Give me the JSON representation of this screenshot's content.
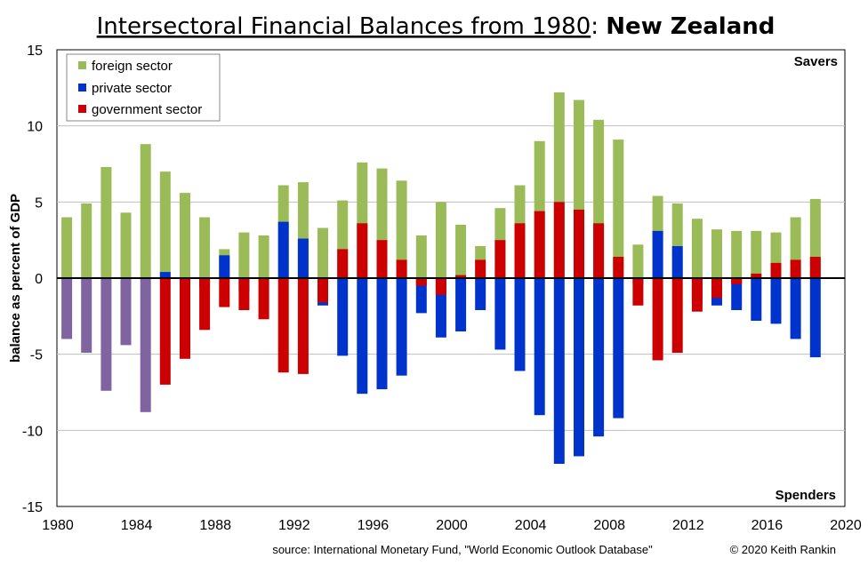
{
  "chart_data": {
    "type": "bar",
    "stacked": true,
    "title": "Intersectoral Financial Balances from 1980",
    "title_suffix": "New Zealand",
    "ylabel": "balance as percent of GDP",
    "xlabel": "",
    "ylim": [
      -15,
      15
    ],
    "xlim": [
      1980,
      2020
    ],
    "yticks": [
      15,
      10,
      5,
      0,
      -5,
      -10,
      -15
    ],
    "xticks": [
      1980,
      1984,
      1988,
      1992,
      1996,
      2000,
      2004,
      2008,
      2012,
      2016,
      2020
    ],
    "grid": true,
    "legend_position": "top-left",
    "annotations": {
      "top_right": "Savers",
      "bottom_right": "Spenders"
    },
    "source": "source:  International Monetary Fund, \"World Economic Outlook Database\"",
    "copyright": "© 2020  Keith Rankin",
    "colors": {
      "foreign": "#9bbb59",
      "private": "#0033cc",
      "government": "#cc0000",
      "combined": "#8064a2"
    },
    "series": [
      {
        "name": "foreign sector",
        "key": "foreign",
        "color": "#9bbb59"
      },
      {
        "name": "private sector",
        "key": "private",
        "color": "#0033cc"
      },
      {
        "name": "government sector",
        "key": "government",
        "color": "#cc0000"
      }
    ],
    "x": [
      1980,
      1981,
      1982,
      1983,
      1984,
      1985,
      1986,
      1987,
      1988,
      1989,
      1990,
      1991,
      1992,
      1993,
      1994,
      1995,
      1996,
      1997,
      1998,
      1999,
      2000,
      2001,
      2002,
      2003,
      2004,
      2005,
      2006,
      2007,
      2008,
      2009,
      2010,
      2011,
      2012,
      2013,
      2014,
      2015,
      2016,
      2017,
      2018
    ],
    "foreign": [
      4.0,
      4.9,
      7.3,
      4.3,
      8.8,
      7.0,
      5.6,
      4.0,
      1.9,
      3.0,
      2.8,
      6.1,
      6.3,
      3.3,
      5.1,
      7.6,
      7.2,
      6.4,
      2.8,
      5.0,
      3.5,
      2.1,
      4.6,
      6.1,
      9.0,
      12.2,
      11.7,
      10.4,
      9.1,
      2.2,
      5.4,
      4.9,
      3.9,
      3.2,
      3.1,
      3.1,
      3.0,
      4.0,
      5.2
    ],
    "private": [
      null,
      null,
      null,
      null,
      null,
      0.4,
      -0.3,
      -0.6,
      1.5,
      -0.9,
      -0.1,
      3.7,
      2.6,
      -1.8,
      -5.1,
      -7.6,
      -7.3,
      -6.4,
      -2.3,
      -3.9,
      -3.5,
      -2.1,
      -4.7,
      -6.1,
      -9.0,
      -12.2,
      -11.7,
      -10.4,
      -9.2,
      -0.4,
      3.1,
      2.1,
      -1.7,
      -1.8,
      -2.1,
      -2.8,
      -3.0,
      -4.0,
      -5.2
    ],
    "government": [
      null,
      null,
      null,
      null,
      null,
      -7.0,
      -5.3,
      -3.4,
      -1.9,
      -2.1,
      -2.7,
      -6.2,
      -6.3,
      -1.6,
      1.9,
      3.6,
      2.5,
      1.2,
      -0.5,
      -1.1,
      0.2,
      1.2,
      2.5,
      3.6,
      4.4,
      5.0,
      4.5,
      3.6,
      1.4,
      -1.8,
      -5.4,
      -4.9,
      -2.2,
      -1.3,
      -0.4,
      0.3,
      1.0,
      1.2,
      1.4
    ],
    "combined_domestic": [
      -4.0,
      -4.9,
      -7.4,
      -4.4,
      -8.8,
      null,
      null,
      null,
      null,
      null,
      null,
      null,
      null,
      null,
      null,
      null,
      null,
      null,
      null,
      null,
      null,
      null,
      null,
      null,
      null,
      null,
      null,
      null,
      null,
      null,
      null,
      null,
      null,
      null,
      null,
      null,
      null,
      null,
      null
    ]
  }
}
